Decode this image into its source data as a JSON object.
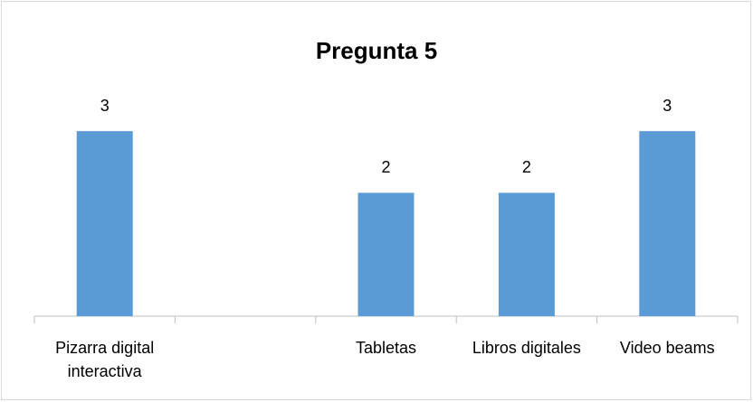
{
  "chart_data": {
    "type": "bar",
    "title": "Pregunta 5",
    "categories": [
      "Pizarra digital interactiva",
      null,
      "Tabletas",
      "Libros digitales",
      "Video beams"
    ],
    "values": [
      3,
      null,
      2,
      2,
      3
    ],
    "color": "#5b9bd5",
    "ylim": [
      0,
      3.5
    ]
  }
}
